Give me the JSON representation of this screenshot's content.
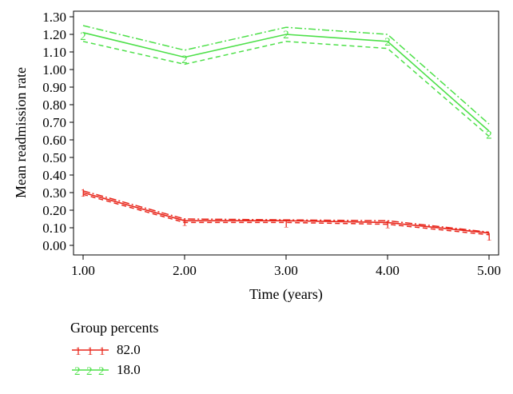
{
  "chart_data": {
    "type": "line",
    "xlabel": "Time (years)",
    "ylabel": "Mean readmission rate",
    "x": [
      1,
      2,
      3,
      4,
      5
    ],
    "xlim": [
      1,
      5
    ],
    "ylim": [
      0,
      1.3
    ],
    "x_ticks": [
      "1.00",
      "2.00",
      "3.00",
      "4.00",
      "5.00"
    ],
    "y_ticks": [
      "0.00",
      "0.10",
      "0.20",
      "0.30",
      "0.40",
      "0.50",
      "0.60",
      "0.70",
      "0.80",
      "0.90",
      "1.00",
      "1.10",
      "1.20",
      "1.30"
    ],
    "grid": false,
    "legend_position": "bottom-left",
    "legend_title": "Group percents",
    "series": [
      {
        "name": "82.0",
        "marker": "1",
        "color": "#e8261b",
        "values": [
          0.3,
          0.14,
          0.14,
          0.13,
          0.07
        ],
        "lower": [
          0.29,
          0.13,
          0.13,
          0.12,
          0.06
        ],
        "upper": [
          0.31,
          0.15,
          0.145,
          0.14,
          0.075
        ],
        "marker_positions": [
          0.3,
          0.135,
          0.125,
          0.12,
          0.05
        ]
      },
      {
        "name": "18.0",
        "marker": "2",
        "color": "#4ee04a",
        "values": [
          1.21,
          1.07,
          1.2,
          1.16,
          0.65
        ],
        "lower": [
          1.16,
          1.03,
          1.16,
          1.12,
          0.62
        ],
        "upper": [
          1.25,
          1.11,
          1.24,
          1.2,
          0.69
        ],
        "marker_positions": [
          1.19,
          1.06,
          1.2,
          1.16,
          0.63
        ]
      }
    ]
  }
}
